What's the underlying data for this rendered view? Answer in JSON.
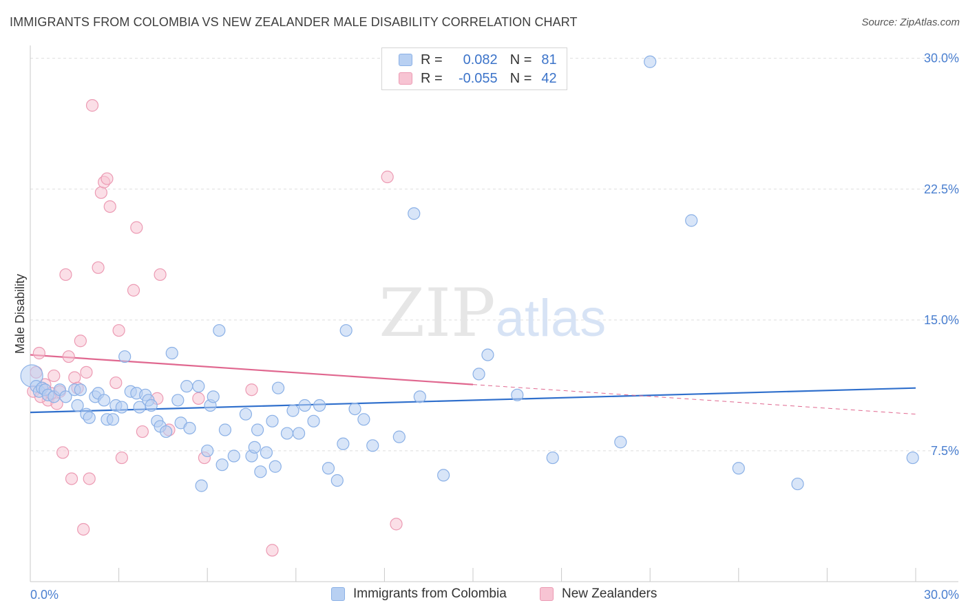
{
  "title": "IMMIGRANTS FROM COLOMBIA VS NEW ZEALANDER MALE DISABILITY CORRELATION CHART",
  "source": "Source: ZipAtlas.com",
  "watermark": {
    "zip": "ZIP",
    "atlas": "atlas"
  },
  "legend": {
    "series1": {
      "r_label": "R =",
      "r_value": "0.082",
      "n_label": "N =",
      "n_value": "81"
    },
    "series2": {
      "r_label": "R =",
      "r_value": "-0.055",
      "n_label": "N =",
      "n_value": "42"
    }
  },
  "colors": {
    "blue_fill": "#b8d0f2",
    "blue_stroke": "#8ab0e6",
    "blue_line": "#2f6fcc",
    "pink_fill": "#f7c4d3",
    "pink_stroke": "#ec9ab3",
    "pink_line": "#e0678f",
    "grid": "#dedede",
    "axis_label": "#4a7fd0"
  },
  "chart_data": {
    "type": "scatter",
    "title": "IMMIGRANTS FROM COLOMBIA VS NEW ZEALANDER MALE DISABILITY CORRELATION CHART",
    "xlabel": "",
    "ylabel": "Male Disability",
    "xlim": [
      0,
      30
    ],
    "ylim": [
      0,
      30.5
    ],
    "x_tick_labels": [
      "0.0%",
      "30.0%"
    ],
    "y_ticks": [
      7.5,
      15.0,
      22.5,
      30.0
    ],
    "y_tick_labels": [
      "7.5%",
      "15.0%",
      "22.5%",
      "30.0%"
    ],
    "grid": true,
    "series": [
      {
        "name": "Immigrants from Colombia",
        "color": "blue",
        "r": 0.082,
        "n": 81,
        "trend": {
          "x": [
            0,
            30
          ],
          "y": [
            9.7,
            11.1
          ],
          "style": "solid"
        },
        "points": [
          [
            0.05,
            11.8
          ],
          [
            0.2,
            11.2
          ],
          [
            0.3,
            10.9
          ],
          [
            0.4,
            11.1
          ],
          [
            0.5,
            11.0
          ],
          [
            0.6,
            10.7
          ],
          [
            0.8,
            10.6
          ],
          [
            1.0,
            11.0
          ],
          [
            1.2,
            10.6
          ],
          [
            1.5,
            11.0
          ],
          [
            1.6,
            10.1
          ],
          [
            1.7,
            11.0
          ],
          [
            1.9,
            9.6
          ],
          [
            2.0,
            9.4
          ],
          [
            2.2,
            10.6
          ],
          [
            2.3,
            10.8
          ],
          [
            2.5,
            10.4
          ],
          [
            2.6,
            9.3
          ],
          [
            2.8,
            9.3
          ],
          [
            2.9,
            10.1
          ],
          [
            3.1,
            10.0
          ],
          [
            3.2,
            12.9
          ],
          [
            3.4,
            10.9
          ],
          [
            3.6,
            10.8
          ],
          [
            3.7,
            10.0
          ],
          [
            3.9,
            10.7
          ],
          [
            4.0,
            10.4
          ],
          [
            4.1,
            10.1
          ],
          [
            4.3,
            9.2
          ],
          [
            4.4,
            8.9
          ],
          [
            4.6,
            8.6
          ],
          [
            4.8,
            13.1
          ],
          [
            5.0,
            10.4
          ],
          [
            5.1,
            9.1
          ],
          [
            5.3,
            11.2
          ],
          [
            5.4,
            8.8
          ],
          [
            5.7,
            11.2
          ],
          [
            5.8,
            5.5
          ],
          [
            6.0,
            7.5
          ],
          [
            6.1,
            10.1
          ],
          [
            6.2,
            10.6
          ],
          [
            6.4,
            14.4
          ],
          [
            6.5,
            6.7
          ],
          [
            6.6,
            8.7
          ],
          [
            6.9,
            7.2
          ],
          [
            7.3,
            9.6
          ],
          [
            7.5,
            7.2
          ],
          [
            7.6,
            7.7
          ],
          [
            7.7,
            8.7
          ],
          [
            7.8,
            6.3
          ],
          [
            8.0,
            7.4
          ],
          [
            8.2,
            9.2
          ],
          [
            8.3,
            6.6
          ],
          [
            8.4,
            11.1
          ],
          [
            8.7,
            8.5
          ],
          [
            8.9,
            9.8
          ],
          [
            9.1,
            8.5
          ],
          [
            9.3,
            10.1
          ],
          [
            9.6,
            9.2
          ],
          [
            9.8,
            10.1
          ],
          [
            10.1,
            6.5
          ],
          [
            10.4,
            5.8
          ],
          [
            10.6,
            7.9
          ],
          [
            10.7,
            14.4
          ],
          [
            11.0,
            9.9
          ],
          [
            11.3,
            9.3
          ],
          [
            11.6,
            7.8
          ],
          [
            12.5,
            8.3
          ],
          [
            13.0,
            21.1
          ],
          [
            13.2,
            10.6
          ],
          [
            14.0,
            6.1
          ],
          [
            15.2,
            11.9
          ],
          [
            16.5,
            10.7
          ],
          [
            17.7,
            7.1
          ],
          [
            21.0,
            29.8
          ],
          [
            22.4,
            20.7
          ],
          [
            24.0,
            6.5
          ],
          [
            26.0,
            5.6
          ],
          [
            29.9,
            7.1
          ],
          [
            15.5,
            13.0
          ],
          [
            20.0,
            8.0
          ]
        ]
      },
      {
        "name": "New Zealanders",
        "color": "pink",
        "r": -0.055,
        "n": 42,
        "trend": {
          "x": [
            0,
            15
          ],
          "y": [
            13.0,
            11.3
          ],
          "style": "solid",
          "dashed_extension": {
            "x": [
              15,
              30
            ],
            "y": [
              11.3,
              9.6
            ]
          }
        },
        "points": [
          [
            0.1,
            10.9
          ],
          [
            0.2,
            12.0
          ],
          [
            0.3,
            13.1
          ],
          [
            0.4,
            11.1
          ],
          [
            0.5,
            11.3
          ],
          [
            0.6,
            10.4
          ],
          [
            0.7,
            10.8
          ],
          [
            0.8,
            11.8
          ],
          [
            0.9,
            10.2
          ],
          [
            1.0,
            10.9
          ],
          [
            1.1,
            7.4
          ],
          [
            1.2,
            17.6
          ],
          [
            1.3,
            12.9
          ],
          [
            1.4,
            5.9
          ],
          [
            1.5,
            11.7
          ],
          [
            1.6,
            11.1
          ],
          [
            1.7,
            13.8
          ],
          [
            1.8,
            3.0
          ],
          [
            1.9,
            12.0
          ],
          [
            2.0,
            5.9
          ],
          [
            2.1,
            27.3
          ],
          [
            2.3,
            18.0
          ],
          [
            2.4,
            22.3
          ],
          [
            2.5,
            22.9
          ],
          [
            2.6,
            23.1
          ],
          [
            2.7,
            21.5
          ],
          [
            2.9,
            11.4
          ],
          [
            3.0,
            14.4
          ],
          [
            3.1,
            7.1
          ],
          [
            3.5,
            16.7
          ],
          [
            3.6,
            20.3
          ],
          [
            3.8,
            8.6
          ],
          [
            4.3,
            10.5
          ],
          [
            4.4,
            17.6
          ],
          [
            4.7,
            8.7
          ],
          [
            5.7,
            10.5
          ],
          [
            5.9,
            7.1
          ],
          [
            7.5,
            11.0
          ],
          [
            8.2,
            1.8
          ],
          [
            12.1,
            23.2
          ],
          [
            12.4,
            3.3
          ],
          [
            0.35,
            10.6
          ]
        ]
      }
    ]
  },
  "bottom_legend": {
    "series1": "Immigrants from Colombia",
    "series2": "New Zealanders"
  }
}
